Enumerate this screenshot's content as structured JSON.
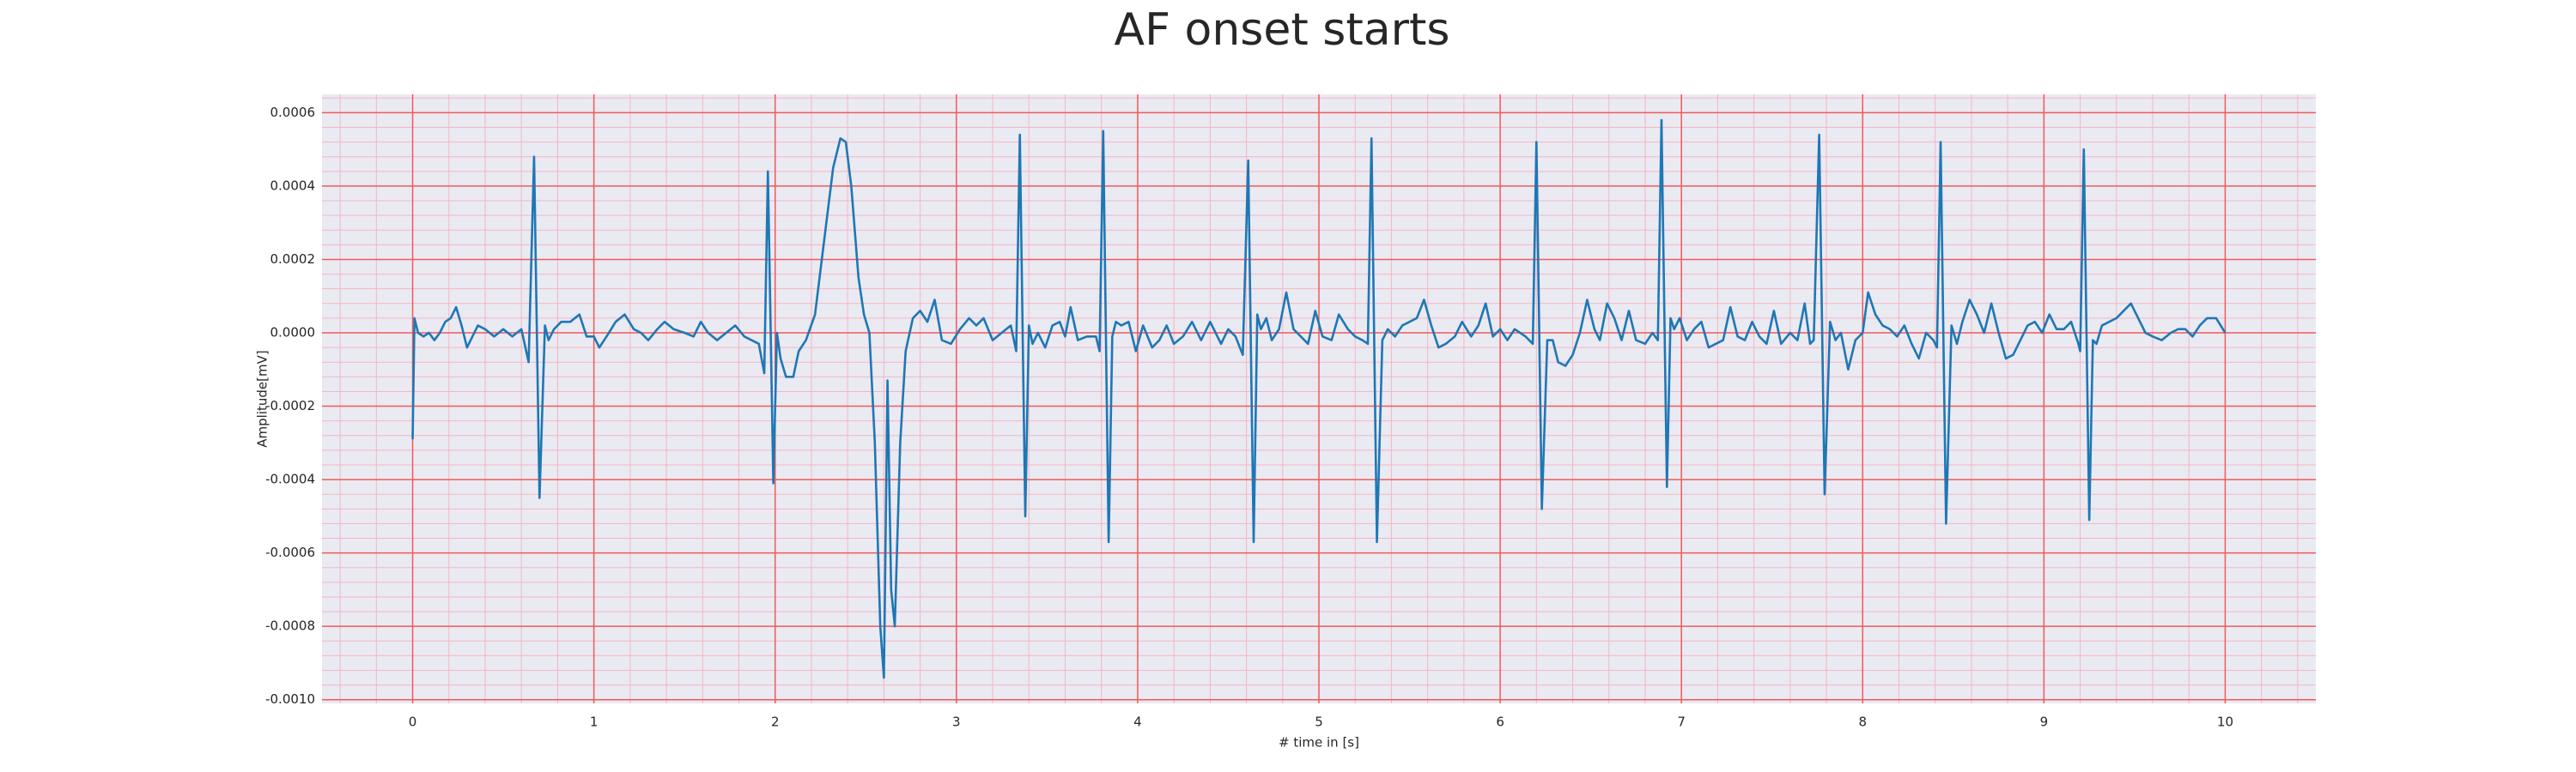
{
  "chart_data": {
    "type": "line",
    "title": "AF onset starts",
    "xlabel": "# time in [s]",
    "ylabel": "Amplitude[mV]",
    "color": "#1f77b4",
    "grid": true,
    "minor_grid": true,
    "xlim": [
      -0.5,
      10.5
    ],
    "xticks": [
      0,
      1,
      2,
      3,
      4,
      5,
      6,
      7,
      8,
      9,
      10
    ],
    "ylim": [
      -0.00101,
      0.00065
    ],
    "yticks": [
      {
        "value": -0.001,
        "label": "-0.0010"
      },
      -0.0008,
      -0.0006,
      -0.0004,
      -0.0002,
      {
        "value": 0,
        "label": "0.0000"
      },
      0.0002,
      0.0004,
      0.0006
    ],
    "x": [
      0,
      0.01,
      0.03,
      0.06,
      0.09,
      0.12,
      0.15,
      0.18,
      0.21,
      0.24,
      0.27,
      0.3,
      0.33,
      0.36,
      0.4,
      0.45,
      0.5,
      0.55,
      0.6,
      0.64,
      0.67,
      0.7,
      0.73,
      0.75,
      0.78,
      0.82,
      0.87,
      0.92,
      0.96,
      1.0,
      1.03,
      1.07,
      1.12,
      1.17,
      1.22,
      1.26,
      1.3,
      1.35,
      1.39,
      1.44,
      1.5,
      1.55,
      1.59,
      1.63,
      1.68,
      1.73,
      1.78,
      1.83,
      1.87,
      1.91,
      1.94,
      1.96,
      1.99,
      2.01,
      2.03,
      2.06,
      2.1,
      2.13,
      2.17,
      2.22,
      2.27,
      2.32,
      2.36,
      2.39,
      2.42,
      2.46,
      2.49,
      2.52,
      2.55,
      2.58,
      2.6,
      2.62,
      2.64,
      2.66,
      2.69,
      2.72,
      2.76,
      2.8,
      2.84,
      2.88,
      2.92,
      2.97,
      3.02,
      3.07,
      3.11,
      3.15,
      3.2,
      3.25,
      3.3,
      3.33,
      3.35,
      3.38,
      3.4,
      3.42,
      3.45,
      3.49,
      3.53,
      3.57,
      3.6,
      3.63,
      3.67,
      3.72,
      3.77,
      3.79,
      3.81,
      3.84,
      3.86,
      3.88,
      3.91,
      3.95,
      3.99,
      4.03,
      4.08,
      4.12,
      4.16,
      4.2,
      4.25,
      4.3,
      4.35,
      4.4,
      4.46,
      4.5,
      4.54,
      4.58,
      4.61,
      4.64,
      4.66,
      4.68,
      4.71,
      4.74,
      4.78,
      4.82,
      4.86,
      4.9,
      4.94,
      4.98,
      5.02,
      5.07,
      5.11,
      5.16,
      5.2,
      5.24,
      5.27,
      5.29,
      5.32,
      5.35,
      5.38,
      5.42,
      5.46,
      5.5,
      5.54,
      5.58,
      5.62,
      5.66,
      5.7,
      5.75,
      5.79,
      5.84,
      5.88,
      5.92,
      5.96,
      6.0,
      6.04,
      6.08,
      6.14,
      6.18,
      6.2,
      6.23,
      6.26,
      6.29,
      6.32,
      6.36,
      6.4,
      6.44,
      6.48,
      6.52,
      6.55,
      6.59,
      6.63,
      6.67,
      6.71,
      6.75,
      6.8,
      6.84,
      6.87,
      6.89,
      6.92,
      6.94,
      6.96,
      6.99,
      7.03,
      7.07,
      7.11,
      7.15,
      7.19,
      7.23,
      7.27,
      7.31,
      7.35,
      7.39,
      7.43,
      7.47,
      7.51,
      7.55,
      7.6,
      7.64,
      7.68,
      7.71,
      7.73,
      7.76,
      7.79,
      7.82,
      7.85,
      7.88,
      7.92,
      7.96,
      8.0,
      8.03,
      8.07,
      8.11,
      8.15,
      8.19,
      8.23,
      8.27,
      8.31,
      8.35,
      8.39,
      8.41,
      8.43,
      8.46,
      8.49,
      8.52,
      8.55,
      8.59,
      8.63,
      8.67,
      8.71,
      8.75,
      8.79,
      8.83,
      8.87,
      8.91,
      8.95,
      8.99,
      9.03,
      9.07,
      9.11,
      9.15,
      9.19,
      9.2,
      9.22,
      9.25,
      9.27,
      9.29,
      9.32,
      9.36,
      9.4,
      9.44,
      9.48,
      9.52,
      9.56,
      9.6,
      9.65,
      9.7,
      9.74,
      9.78,
      9.82,
      9.86,
      9.9,
      9.95,
      10.0
    ],
    "values": [
      -0.00029,
      4e-05,
      0,
      -1e-05,
      0,
      -2e-05,
      0,
      3e-05,
      4e-05,
      7e-05,
      2e-05,
      -4e-05,
      -1e-05,
      2e-05,
      1e-05,
      -1e-05,
      1e-05,
      -1e-05,
      1e-05,
      -8e-05,
      0.00048,
      -0.00045,
      2e-05,
      -2e-05,
      1e-05,
      3e-05,
      3e-05,
      5e-05,
      -1e-05,
      -1e-05,
      -4e-05,
      -1e-05,
      3e-05,
      5e-05,
      1e-05,
      0,
      -2e-05,
      1e-05,
      3e-05,
      1e-05,
      0,
      -1e-05,
      3e-05,
      0,
      -2e-05,
      0,
      2e-05,
      -1e-05,
      -2e-05,
      -3e-05,
      -0.00011,
      0.00044,
      -0.00041,
      0,
      -7e-05,
      -0.00012,
      -0.00012,
      -5e-05,
      -2e-05,
      5e-05,
      0.00025,
      0.00045,
      0.00053,
      0.00052,
      0.0004,
      0.00015,
      5e-05,
      0,
      -0.0003,
      -0.0008,
      -0.00094,
      -0.00013,
      -0.0007,
      -0.0008,
      -0.0003,
      -5e-05,
      4e-05,
      6e-05,
      3e-05,
      9e-05,
      -2e-05,
      -3e-05,
      1e-05,
      4e-05,
      2e-05,
      4e-05,
      -2e-05,
      0,
      2e-05,
      -5e-05,
      0.00054,
      -0.0005,
      2e-05,
      -3e-05,
      0,
      -4e-05,
      2e-05,
      3e-05,
      -1e-05,
      7e-05,
      -2e-05,
      -1e-05,
      -1e-05,
      -5e-05,
      0.00055,
      -0.00057,
      -1e-05,
      3e-05,
      2e-05,
      3e-05,
      -5e-05,
      2e-05,
      -4e-05,
      -2e-05,
      2e-05,
      -3e-05,
      -1e-05,
      3e-05,
      -2e-05,
      3e-05,
      -3e-05,
      1e-05,
      -1e-05,
      -6e-05,
      0.00047,
      -0.00057,
      5e-05,
      1e-05,
      4e-05,
      -2e-05,
      1e-05,
      0.00011,
      1e-05,
      -1e-05,
      -3e-05,
      6e-05,
      -1e-05,
      -2e-05,
      5e-05,
      1e-05,
      -1e-05,
      -2e-05,
      -3e-05,
      0.00053,
      -0.00057,
      -2e-05,
      1e-05,
      -1e-05,
      2e-05,
      3e-05,
      4e-05,
      9e-05,
      2e-05,
      -4e-05,
      -3e-05,
      -1e-05,
      3e-05,
      -1e-05,
      2e-05,
      8e-05,
      -1e-05,
      1e-05,
      -2e-05,
      1e-05,
      -1e-05,
      -3e-05,
      0.00052,
      -0.00048,
      -2e-05,
      -2e-05,
      -8e-05,
      -9e-05,
      -6e-05,
      0,
      9e-05,
      1e-05,
      -2e-05,
      8e-05,
      4e-05,
      -2e-05,
      6e-05,
      -2e-05,
      -3e-05,
      0,
      -2e-05,
      0.00058,
      -0.00042,
      4e-05,
      1e-05,
      4e-05,
      -2e-05,
      1e-05,
      3e-05,
      -4e-05,
      -3e-05,
      -2e-05,
      7e-05,
      -1e-05,
      -2e-05,
      3e-05,
      -1e-05,
      -3e-05,
      6e-05,
      -3e-05,
      0,
      -2e-05,
      8e-05,
      -3e-05,
      -2e-05,
      0.00054,
      -0.00044,
      3e-05,
      -2e-05,
      0,
      -0.0001,
      -2e-05,
      0,
      0.00011,
      5e-05,
      2e-05,
      1e-05,
      -1e-05,
      2e-05,
      -3e-05,
      -7e-05,
      0,
      -2e-05,
      -4e-05,
      0.00052,
      -0.00052,
      2e-05,
      -3e-05,
      3e-05,
      9e-05,
      5e-05,
      0,
      8e-05,
      0,
      -7e-05,
      -6e-05,
      -2e-05,
      2e-05,
      3e-05,
      0,
      5e-05,
      1e-05,
      1e-05,
      3e-05,
      -3e-05,
      -5e-05,
      0.0005,
      -0.00051,
      -2e-05,
      -3e-05,
      2e-05,
      3e-05,
      4e-05,
      6e-05,
      8e-05,
      4e-05,
      0,
      -1e-05,
      -2e-05,
      0,
      1e-05,
      1e-05,
      -1e-05,
      2e-05,
      4e-05,
      4e-05,
      0
    ]
  }
}
